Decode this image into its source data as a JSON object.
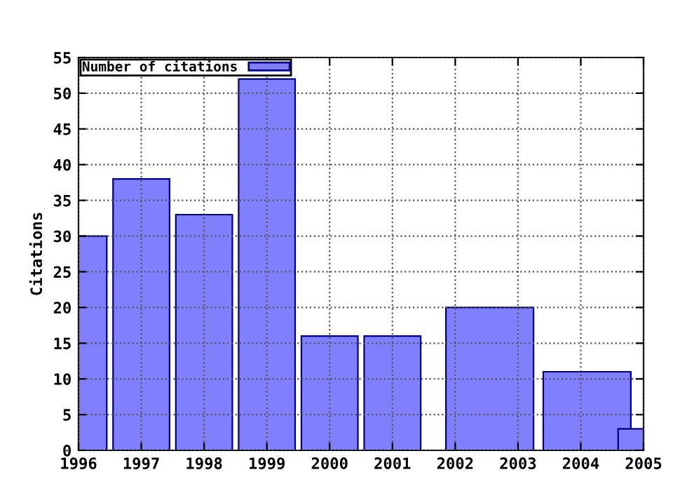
{
  "chart_data": {
    "type": "bar",
    "ylabel": "Citations",
    "x": [
      1996,
      1997,
      1998,
      1999,
      2000,
      2001,
      2002.55,
      2004.1,
      2005
    ],
    "series": [
      {
        "name": "Number of citations",
        "color": "#8080ff",
        "values": [
          30,
          38,
          33,
          52,
          16,
          16,
          20,
          11,
          3
        ]
      }
    ],
    "xlim": [
      1996,
      2005
    ],
    "xticks": [
      1996,
      1997,
      1998,
      1999,
      2000,
      2001,
      2002,
      2003,
      2004,
      2005
    ],
    "ylim": [
      0,
      55
    ],
    "yticks": [
      0,
      5,
      10,
      15,
      20,
      25,
      30,
      35,
      40,
      45,
      50,
      55
    ],
    "grid": true,
    "legend": "top left"
  }
}
